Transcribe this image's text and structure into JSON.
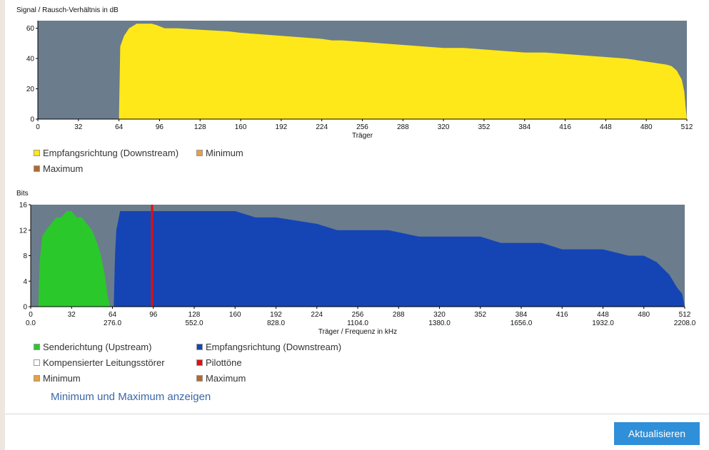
{
  "chart_data": [
    {
      "type": "area",
      "title": "Signal / Rausch-Verhältnis in dB",
      "xlabel": "Träger",
      "ylabel": "",
      "xlim": [
        0,
        512
      ],
      "ylim": [
        0,
        65
      ],
      "x_ticks": [
        0,
        32,
        64,
        96,
        128,
        160,
        192,
        224,
        256,
        288,
        320,
        352,
        384,
        416,
        448,
        480,
        512
      ],
      "y_ticks": [
        0,
        20,
        40,
        60
      ],
      "background": "#6b7c8d",
      "series": [
        {
          "name": "Empfangsrichtung (Downstream)",
          "color": "#ffe81a",
          "x": [
            63,
            64,
            65,
            68,
            72,
            78,
            90,
            94,
            97,
            100,
            110,
            128,
            150,
            160,
            176,
            192,
            208,
            224,
            232,
            240,
            256,
            272,
            288,
            304,
            320,
            336,
            352,
            368,
            384,
            400,
            416,
            432,
            448,
            464,
            472,
            480,
            488,
            496,
            500,
            504,
            508,
            510,
            511,
            512
          ],
          "y": [
            0,
            0,
            48,
            55,
            60,
            63,
            63,
            62,
            61,
            60,
            60,
            59,
            58,
            57,
            56,
            55,
            54,
            53,
            52,
            52,
            51,
            50,
            49,
            48,
            47,
            47,
            46,
            45,
            44,
            44,
            43,
            42,
            41,
            40,
            39,
            38,
            37,
            36,
            35,
            32,
            26,
            18,
            8,
            0
          ]
        },
        {
          "name": "Minimum",
          "color": "#e8a040",
          "x": [],
          "y": []
        },
        {
          "name": "Maximum",
          "color": "#b06a30",
          "x": [],
          "y": []
        }
      ]
    },
    {
      "type": "area",
      "title": "Bits",
      "xlabel": "Träger / Frequenz in kHz",
      "ylabel": "",
      "xlim": [
        0,
        512
      ],
      "ylim": [
        0,
        16
      ],
      "x_ticks": [
        0,
        32,
        64,
        96,
        128,
        160,
        192,
        224,
        256,
        288,
        320,
        352,
        384,
        416,
        448,
        480,
        512
      ],
      "x_freq_labels": [
        "0.0",
        "276.0",
        "552.0",
        "828.0",
        "1104.0",
        "1380.0",
        "1656.0",
        "1932.0",
        "2208.0"
      ],
      "y_ticks": [
        0,
        4,
        8,
        12,
        16
      ],
      "background": "#6b7c8d",
      "series": [
        {
          "name": "Senderichtung (Upstream)",
          "color": "#2bc82b",
          "x": [
            6,
            7,
            9,
            12,
            16,
            20,
            24,
            28,
            32,
            36,
            40,
            44,
            48,
            52,
            55,
            58,
            60,
            61,
            62
          ],
          "y": [
            0,
            7,
            11,
            12,
            13,
            14,
            14,
            15,
            15,
            14,
            14,
            13,
            12,
            10,
            8,
            5,
            2,
            1,
            0
          ]
        },
        {
          "name": "Empfangsrichtung (Downstream)",
          "color": "#1545b5",
          "x": [
            65,
            66,
            67,
            68,
            70,
            128,
            140,
            160,
            176,
            192,
            224,
            240,
            256,
            280,
            304,
            320,
            352,
            368,
            380,
            400,
            416,
            448,
            468,
            480,
            490,
            500,
            506,
            510,
            511,
            512
          ],
          "y": [
            0,
            8,
            12,
            13,
            15,
            15,
            15,
            15,
            14,
            14,
            13,
            12,
            12,
            12,
            11,
            11,
            11,
            10,
            10,
            10,
            9,
            9,
            8,
            8,
            7,
            5,
            3,
            2,
            1,
            0
          ]
        },
        {
          "name": "Kompensierter Leitungsstörer",
          "color": "#ffffff",
          "x": [],
          "y": []
        },
        {
          "name": "Pilottöne",
          "color": "#e01010",
          "x": [
            95
          ],
          "y": [
            16
          ]
        },
        {
          "name": "Minimum",
          "color": "#e8a040",
          "x": [],
          "y": []
        },
        {
          "name": "Maximum",
          "color": "#b06a30",
          "x": [],
          "y": []
        }
      ]
    }
  ],
  "legend1": {
    "downstream": "Empfangsrichtung (Downstream)",
    "minimum": "Minimum",
    "maximum": "Maximum"
  },
  "legend2": {
    "upstream": "Senderichtung (Upstream)",
    "downstream": "Empfangsrichtung (Downstream)",
    "compensated": "Kompensierter Leitungsstörer",
    "pilot": "Pilottöne",
    "minimum": "Minimum",
    "maximum": "Maximum"
  },
  "toggle_link": "Minimum und Maximum anzeigen",
  "refresh_button": "Aktualisieren",
  "colors": {
    "plot_background": "#6b7c8d",
    "snr": "#ffe81a",
    "upstream": "#2bc82b",
    "downstream": "#1545b5",
    "pilot": "#e01010",
    "minimum": "#e8a040",
    "maximum": "#b06a30",
    "link": "#3a67a8",
    "button": "#2f8fd8"
  }
}
